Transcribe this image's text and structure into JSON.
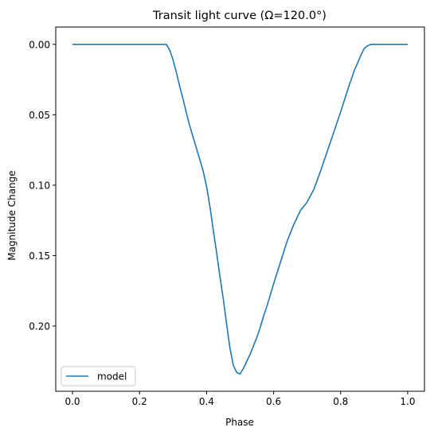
{
  "chart_data": {
    "type": "line",
    "title": "Transit light curve (Ω=120.0°)",
    "xlabel": "Phase",
    "ylabel": "Magnitude Change",
    "xlim": [
      -0.05,
      1.05
    ],
    "ylim": [
      0.2463,
      -0.0123
    ],
    "y_inverted": true,
    "grid": false,
    "legend_position": "lower-left",
    "x_ticks": [
      {
        "value": 0.0,
        "label": "0.0"
      },
      {
        "value": 0.2,
        "label": "0.2"
      },
      {
        "value": 0.4,
        "label": "0.4"
      },
      {
        "value": 0.6,
        "label": "0.6"
      },
      {
        "value": 0.8,
        "label": "0.8"
      },
      {
        "value": 1.0,
        "label": "1.0"
      }
    ],
    "y_ticks": [
      {
        "value": 0.0,
        "label": "0.00"
      },
      {
        "value": 0.05,
        "label": "0.05"
      },
      {
        "value": 0.1,
        "label": "0.10"
      },
      {
        "value": 0.15,
        "label": "0.15"
      },
      {
        "value": 0.2,
        "label": "0.20"
      }
    ],
    "series": [
      {
        "name": "model",
        "color": "#1f77b4",
        "x": [
          0.0,
          0.05,
          0.1,
          0.15,
          0.2,
          0.25,
          0.28,
          0.29,
          0.3,
          0.31,
          0.32,
          0.33,
          0.34,
          0.35,
          0.36,
          0.37,
          0.38,
          0.39,
          0.4,
          0.41,
          0.42,
          0.43,
          0.44,
          0.45,
          0.46,
          0.47,
          0.48,
          0.49,
          0.5,
          0.51,
          0.52,
          0.53,
          0.54,
          0.55,
          0.56,
          0.57,
          0.58,
          0.59,
          0.6,
          0.62,
          0.64,
          0.66,
          0.68,
          0.7,
          0.72,
          0.74,
          0.76,
          0.78,
          0.8,
          0.82,
          0.84,
          0.86,
          0.87,
          0.88,
          0.89,
          0.9,
          0.95,
          1.0
        ],
        "y": [
          0.0,
          0.0,
          0.0,
          0.0,
          0.0,
          0.0,
          0.0,
          0.004,
          0.011,
          0.02,
          0.03,
          0.039,
          0.049,
          0.058,
          0.066,
          0.074,
          0.082,
          0.09,
          0.101,
          0.115,
          0.132,
          0.148,
          0.165,
          0.181,
          0.199,
          0.216,
          0.228,
          0.233,
          0.234,
          0.23,
          0.225,
          0.22,
          0.214,
          0.208,
          0.201,
          0.193,
          0.186,
          0.178,
          0.17,
          0.155,
          0.14,
          0.128,
          0.118,
          0.112,
          0.103,
          0.09,
          0.076,
          0.062,
          0.048,
          0.033,
          0.019,
          0.008,
          0.003,
          0.001,
          0.0,
          0.0,
          0.0,
          0.0
        ]
      }
    ]
  }
}
